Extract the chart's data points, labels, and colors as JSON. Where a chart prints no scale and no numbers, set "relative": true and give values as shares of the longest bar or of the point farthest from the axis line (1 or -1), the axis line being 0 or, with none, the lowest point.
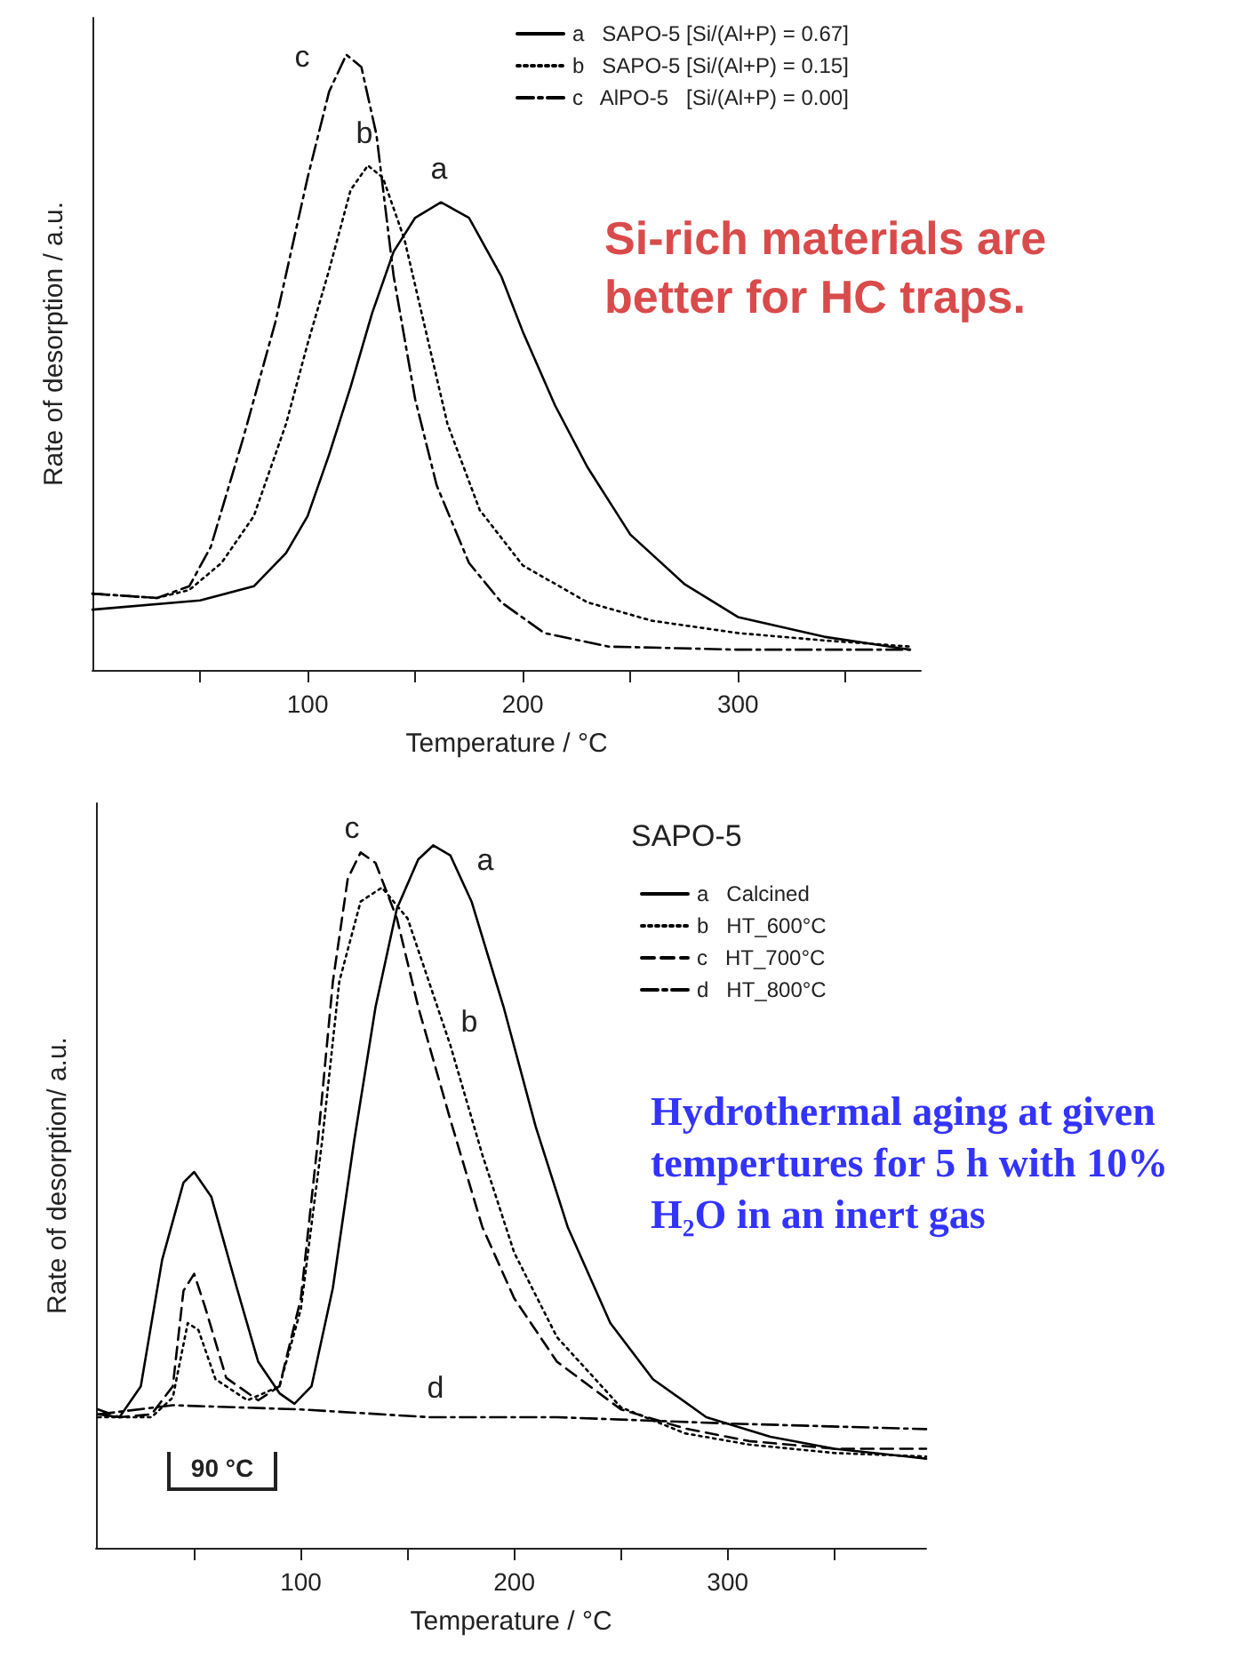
{
  "chart_data": [
    {
      "type": "line",
      "relative": true,
      "xlabel": "Temperature / °C",
      "ylabel": "Rate of desorption / a.u.",
      "xlim": [
        0,
        385
      ],
      "xticks": [
        {
          "value": 50,
          "label": null
        },
        100,
        {
          "value": 150,
          "label": null
        },
        200,
        {
          "value": 250,
          "label": null
        },
        300,
        {
          "value": 350,
          "label": null
        }
      ],
      "grid": false,
      "legend": "top right",
      "marker": "none",
      "series": [
        {
          "name": "a   SAPO-5 [Si/(Al+P) = 0.67]",
          "color": "#000000",
          "line_style": "solid",
          "x": [
            0,
            50,
            75,
            90,
            100,
            110,
            120,
            130,
            140,
            150,
            162,
            175,
            190,
            200,
            215,
            230,
            250,
            275,
            300,
            340,
            380
          ],
          "values": [
            0.098,
            0.113,
            0.136,
            0.19,
            0.25,
            0.35,
            0.46,
            0.58,
            0.68,
            0.735,
            0.76,
            0.735,
            0.64,
            0.55,
            0.43,
            0.33,
            0.22,
            0.14,
            0.086,
            0.054,
            0.033
          ]
        },
        {
          "name": "b   SAPO-5 [Si/(Al+P) = 0.15]",
          "color": "#000000",
          "line_style": "dotted",
          "x": [
            0,
            30,
            45,
            60,
            75,
            90,
            100,
            110,
            120,
            128,
            135,
            145,
            155,
            165,
            180,
            200,
            230,
            260,
            300,
            340,
            380
          ],
          "values": [
            0.124,
            0.117,
            0.13,
            0.174,
            0.25,
            0.4,
            0.53,
            0.65,
            0.78,
            0.82,
            0.8,
            0.7,
            0.55,
            0.4,
            0.26,
            0.17,
            0.11,
            0.08,
            0.06,
            0.048,
            0.038
          ]
        },
        {
          "name": "c   AlPO-5   [Si/(Al+P) = 0.00]",
          "color": "#000000",
          "line_style": "dashdot",
          "x": [
            0,
            30,
            45,
            55,
            70,
            85,
            100,
            110,
            118,
            125,
            132,
            140,
            150,
            160,
            175,
            190,
            210,
            240,
            300,
            380
          ],
          "values": [
            0.124,
            0.117,
            0.136,
            0.2,
            0.376,
            0.565,
            0.8,
            0.94,
            1.0,
            0.98,
            0.87,
            0.64,
            0.44,
            0.3,
            0.174,
            0.11,
            0.06,
            0.038,
            0.033,
            0.033
          ]
        }
      ],
      "annotations": [
        "Si-rich materials are better for HC traps.",
        "a",
        "b",
        "c"
      ]
    },
    {
      "type": "line",
      "relative": true,
      "xlabel": "Temperature / °C",
      "ylabel": "Rate of desorption/ a.u.",
      "legend_title": "SAPO-5",
      "xlim": [
        4,
        393
      ],
      "xticks": [
        {
          "value": 50,
          "label": null
        },
        100,
        {
          "value": 150,
          "label": null
        },
        200,
        {
          "value": 250,
          "label": null
        },
        300,
        {
          "value": 350,
          "label": null
        }
      ],
      "grid": false,
      "legend": "top right",
      "marker": "none",
      "series": [
        {
          "name": "a   Calcined",
          "color": "#000000",
          "line_style": "solid",
          "x": [
            5,
            15,
            25,
            35,
            45,
            50,
            58,
            70,
            80,
            90,
            97,
            105,
            115,
            125,
            135,
            145,
            155,
            162,
            170,
            180,
            195,
            210,
            225,
            245,
            265,
            290,
            320,
            350,
            393
          ],
          "values": [
            0.19,
            0.186,
            0.23,
            0.41,
            0.52,
            0.535,
            0.5,
            0.37,
            0.265,
            0.22,
            0.205,
            0.23,
            0.37,
            0.58,
            0.77,
            0.91,
            0.98,
            1.0,
            0.986,
            0.92,
            0.77,
            0.6,
            0.457,
            0.32,
            0.24,
            0.186,
            0.158,
            0.141,
            0.127
          ]
        },
        {
          "name": "b   HT_600°C",
          "color": "#000000",
          "line_style": "dotted",
          "x": [
            5,
            30,
            40,
            47,
            52,
            60,
            75,
            90,
            100,
            110,
            118,
            128,
            138,
            150,
            160,
            170,
            185,
            200,
            220,
            250,
            280,
            310,
            350,
            393
          ],
          "values": [
            0.186,
            0.186,
            0.214,
            0.32,
            0.31,
            0.24,
            0.21,
            0.23,
            0.34,
            0.58,
            0.806,
            0.92,
            0.94,
            0.896,
            0.806,
            0.716,
            0.56,
            0.42,
            0.3,
            0.2,
            0.163,
            0.147,
            0.135,
            0.13
          ]
        },
        {
          "name": "c   HT_700°C",
          "color": "#000000",
          "line_style": "dashed",
          "x": [
            5,
            15,
            30,
            40,
            45,
            50,
            55,
            65,
            80,
            90,
            100,
            108,
            115,
            122,
            128,
            135,
            145,
            155,
            170,
            185,
            200,
            220,
            250,
            280,
            310,
            350,
            393
          ],
          "values": [
            0.197,
            0.186,
            0.19,
            0.23,
            0.366,
            0.39,
            0.344,
            0.242,
            0.21,
            0.23,
            0.355,
            0.58,
            0.806,
            0.953,
            0.99,
            0.975,
            0.896,
            0.77,
            0.61,
            0.457,
            0.355,
            0.265,
            0.197,
            0.17,
            0.152,
            0.141,
            0.141
          ]
        },
        {
          "name": "d   HT_800°C",
          "color": "#000000",
          "line_style": "dashdot",
          "x": [
            5,
            40,
            100,
            160,
            220,
            300,
            393
          ],
          "values": [
            0.19,
            0.203,
            0.197,
            0.186,
            0.186,
            0.177,
            0.169
          ]
        }
      ],
      "annotations": [
        "Hydrothermal aging at given tempertures for 5 h with 10% H₂O in an inert gas",
        "90 °C",
        "a",
        "b",
        "c",
        "d"
      ]
    }
  ]
}
